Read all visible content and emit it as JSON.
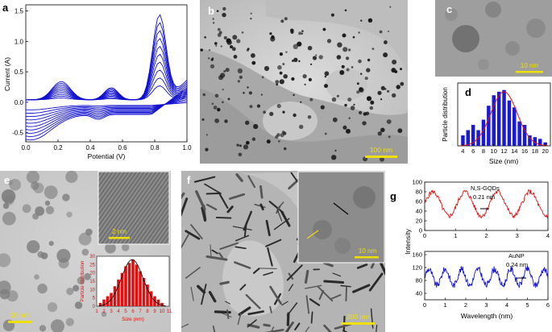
{
  "panels": {
    "a": {
      "letter": "a"
    },
    "b": {
      "letter": "b",
      "scale_bar": "100 nm"
    },
    "c": {
      "letter": "c",
      "scale_bar": "10 nm"
    },
    "d": {
      "letter": "d"
    },
    "e": {
      "letter": "e",
      "scale_bar": "20 nm",
      "inset_scale_bar": "2 nm"
    },
    "f": {
      "letter": "f",
      "scale_bar": "200 nm",
      "inset_scale_bar": "10 nm"
    },
    "g": {
      "letter": "g",
      "label_top": "N,S-GQDs",
      "spacing_top": "0.21 nm",
      "label_bottom": "AuNP",
      "spacing_bottom": "0.24 nm"
    }
  },
  "colors": {
    "cv": "#1010d0",
    "bars": "#1a1ad6",
    "fit": "#e01010",
    "inset_bars": "#e01010",
    "profile_top": "#e01010",
    "profile_bottom": "#1010d0",
    "scale_bar": "#f0e000"
  },
  "chart_data": [
    {
      "id": "a",
      "type": "line",
      "title": "",
      "xlabel": "Potential (V)",
      "ylabel": "Current (A)",
      "xlim": [
        0,
        1.0
      ],
      "ylim": [
        -0.65,
        1.6
      ],
      "xticks": [
        "0.0",
        "0.2",
        "0.4",
        "0.6",
        "0.8",
        "1.0"
      ],
      "yticks": [
        "-0.5",
        "0.0",
        "0.5",
        "1.0",
        "1.5"
      ],
      "cycles": 10,
      "anodic_peak": {
        "x": 0.83,
        "y_range": [
          0.1,
          1.48
        ]
      },
      "cathodic_minimum": {
        "y_range": [
          -0.05,
          -0.6
        ]
      }
    },
    {
      "id": "d",
      "type": "bar",
      "xlabel": "Size (nm)",
      "ylabel": "Particle distribution",
      "categories": [
        "4",
        "6",
        "8",
        "10",
        "12",
        "14",
        "16",
        "18",
        "20"
      ],
      "x": [
        4,
        5,
        6,
        7,
        8,
        9,
        10,
        11,
        12,
        13,
        14,
        15,
        16,
        17,
        18,
        19,
        20
      ],
      "values": [
        3,
        4.5,
        6,
        4.5,
        7.5,
        11.5,
        14.5,
        15.5,
        16,
        13,
        11,
        7,
        6,
        3,
        2.5,
        2,
        1
      ],
      "ylim": [
        0,
        18
      ],
      "fit": "gaussian",
      "fit_center": 12
    },
    {
      "id": "e_inset",
      "type": "bar",
      "xlabel": "Size (nm)",
      "ylabel": "Particle distribution",
      "categories": [
        "1",
        "2",
        "3",
        "4",
        "5",
        "6",
        "7",
        "8",
        "9",
        "10",
        "11"
      ],
      "yticks": [
        "0",
        "5",
        "10",
        "15",
        "20",
        "25",
        "30"
      ],
      "x": [
        1.5,
        2,
        2.5,
        3,
        3.5,
        4,
        4.5,
        5,
        5.5,
        6,
        6.5,
        7,
        7.5,
        8,
        8.5,
        9,
        9.5,
        10
      ],
      "values": [
        2,
        4,
        6,
        8,
        12,
        16,
        20,
        24,
        26,
        28,
        25,
        21,
        17,
        13,
        9,
        6,
        4,
        2
      ],
      "ylim": [
        0,
        30
      ],
      "fit": "gaussian"
    },
    {
      "id": "g_top",
      "type": "line",
      "ylabel": "Intensity",
      "xlim": [
        0,
        4
      ],
      "ylim": [
        0,
        100
      ],
      "xticks": [
        "0",
        "1",
        "2",
        "3",
        "4"
      ],
      "yticks": [
        "0",
        "20",
        "40",
        "60",
        "80",
        "100"
      ],
      "series": [
        {
          "label": "N,S-GQDs",
          "lattice_spacing": "0.21 nm"
        }
      ]
    },
    {
      "id": "g_bottom",
      "type": "line",
      "xlabel": "Wavelength (nm)",
      "ylabel": "Intensity",
      "xlim": [
        0,
        6
      ],
      "ylim": [
        20,
        170
      ],
      "xticks": [
        "0",
        "1",
        "2",
        "3",
        "4",
        "5",
        "6"
      ],
      "yticks": [
        "40",
        "80",
        "120",
        "160"
      ],
      "series": [
        {
          "label": "AuNP",
          "lattice_spacing": "0.24 nm"
        }
      ]
    }
  ]
}
